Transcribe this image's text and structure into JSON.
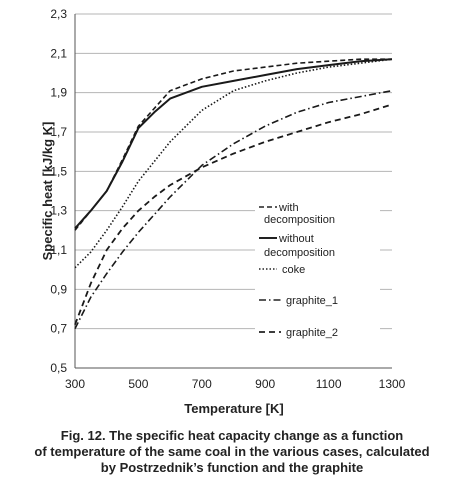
{
  "chart_data": {
    "type": "line",
    "title": "",
    "xlabel": "Temperature [K]",
    "ylabel": "Specific heat [kJ/kg K]",
    "xlim": [
      300,
      1300
    ],
    "ylim": [
      0.5,
      2.3
    ],
    "xticks": [
      "300",
      "500",
      "700",
      "900",
      "1100",
      "1300"
    ],
    "yticks": [
      "0,5",
      "0,7",
      "0,9",
      "1,1",
      "1,3",
      "1,5",
      "1,7",
      "1,9",
      "2,1",
      "2,3"
    ],
    "grid": "horizontal",
    "legend_position": "inside-right",
    "series": [
      {
        "name": "with decomposition",
        "x": [
          300,
          350,
          400,
          450,
          500,
          550,
          600,
          700,
          800,
          900,
          1000,
          1100,
          1200,
          1300
        ],
        "y": [
          1.2,
          1.3,
          1.4,
          1.56,
          1.73,
          1.82,
          1.91,
          1.97,
          2.01,
          2.03,
          2.05,
          2.06,
          2.07,
          2.07
        ]
      },
      {
        "name": "without decomposition",
        "x": [
          300,
          350,
          400,
          450,
          500,
          550,
          600,
          700,
          800,
          900,
          1000,
          1100,
          1200,
          1300
        ],
        "y": [
          1.21,
          1.3,
          1.4,
          1.55,
          1.72,
          1.8,
          1.87,
          1.93,
          1.96,
          1.99,
          2.02,
          2.04,
          2.06,
          2.07
        ]
      },
      {
        "name": "coke",
        "x": [
          300,
          350,
          400,
          450,
          500,
          550,
          600,
          700,
          800,
          900,
          1000,
          1100,
          1200,
          1300
        ],
        "y": [
          1.01,
          1.09,
          1.2,
          1.32,
          1.45,
          1.55,
          1.65,
          1.81,
          1.91,
          1.96,
          2.0,
          2.03,
          2.05,
          2.07
        ]
      },
      {
        "name": "graphite_1",
        "x": [
          300,
          350,
          400,
          450,
          500,
          550,
          600,
          700,
          800,
          900,
          1000,
          1100,
          1200,
          1300
        ],
        "y": [
          0.7,
          0.86,
          0.98,
          1.09,
          1.19,
          1.28,
          1.37,
          1.53,
          1.64,
          1.73,
          1.8,
          1.85,
          1.88,
          1.91
        ]
      },
      {
        "name": "graphite_2",
        "x": [
          300,
          350,
          400,
          450,
          500,
          550,
          600,
          700,
          800,
          900,
          1000,
          1100,
          1200,
          1300
        ],
        "y": [
          0.72,
          0.93,
          1.1,
          1.21,
          1.3,
          1.37,
          1.43,
          1.52,
          1.59,
          1.65,
          1.7,
          1.75,
          1.79,
          1.84
        ]
      }
    ]
  },
  "legend": [
    {
      "line1": "with",
      "line2": "decomposition"
    },
    {
      "line1": "without",
      "line2": "decomposition"
    },
    {
      "line1": "coke",
      "line2": ""
    },
    {
      "line1": "graphite_1",
      "line2": ""
    },
    {
      "line1": "graphite_2",
      "line2": ""
    }
  ],
  "caption": {
    "line1": "Fig. 12. The specific heat capacity change as a function",
    "line2": "of temperature of the same coal in the various cases, calculated",
    "line3": "by Postrzednik’s function and the graphite"
  }
}
